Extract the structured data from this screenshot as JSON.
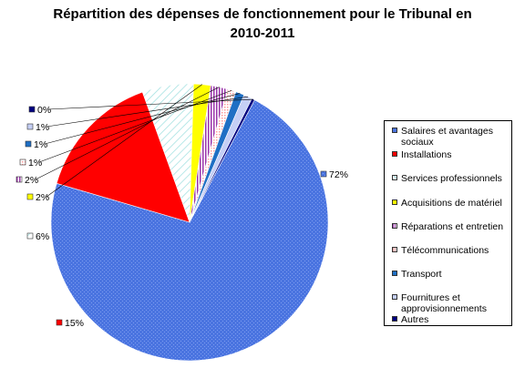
{
  "chart_data": {
    "type": "pie",
    "title": "Répartition des dépenses de fonctionnement pour le Tribunal en 2010-2011",
    "title_lines": [
      "Répartition des dépenses de fonctionnement pour le Tribunal en",
      "2010-2011"
    ],
    "legend_position": "right",
    "slices": [
      {
        "name": "Salaires et avantages sociaux",
        "value": 72,
        "label": "72%",
        "color": "#4a74e0",
        "pattern": "dots"
      },
      {
        "name": "Installations",
        "value": 15,
        "label": "15%",
        "color": "#ff0000",
        "pattern": "solid"
      },
      {
        "name": "Services professionnels",
        "value": 6,
        "label": "6%",
        "color": "#ffffff",
        "pattern": "diagonal"
      },
      {
        "name": "Acquisitions de matériel",
        "value": 2,
        "label": "2%",
        "color": "#ffff00",
        "pattern": "solid"
      },
      {
        "name": "Réparations et entretien",
        "value": 2,
        "label": "2%",
        "color": "#9933aa",
        "pattern": "vertical-stripes"
      },
      {
        "name": "Télécommunications",
        "value": 1,
        "label": "1%",
        "color": "#ff9999",
        "pattern": "dots"
      },
      {
        "name": "Transport",
        "value": 1,
        "label": "1%",
        "color": "#1f6fc4",
        "pattern": "solid"
      },
      {
        "name": "Fournitures et approvisionnements",
        "value": 1,
        "label": "1%",
        "color": "#c5cff5",
        "pattern": "solid"
      },
      {
        "name": "Autres",
        "value": 0,
        "label": "0%",
        "color": "#000080",
        "pattern": "solid"
      }
    ]
  }
}
